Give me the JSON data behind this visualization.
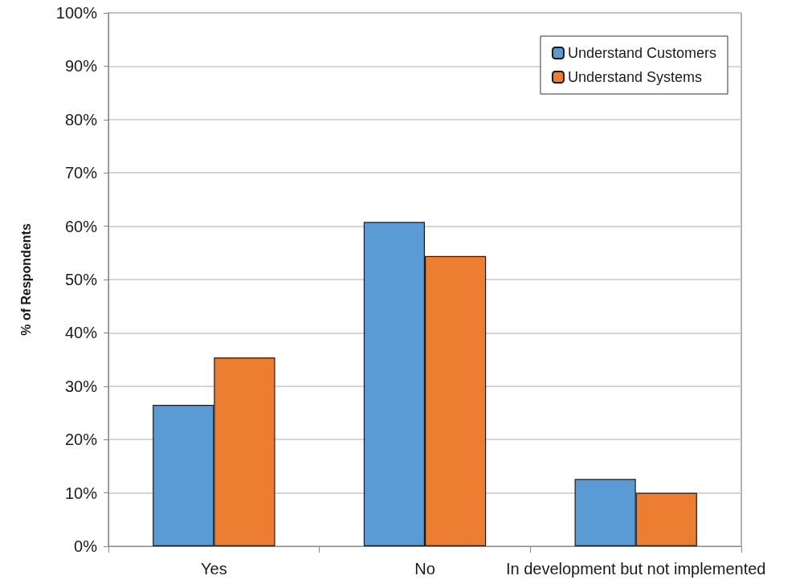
{
  "chart_data": {
    "type": "bar",
    "ylabel": "% of Respondents",
    "categories": [
      "Yes",
      "No",
      "In development but not implemented"
    ],
    "series": [
      {
        "name": "Understand Customers",
        "color": "#5b9bd5",
        "values": [
          26.5,
          60.8,
          12.6
        ]
      },
      {
        "name": "Understand Systems",
        "color": "#ed7d31",
        "values": [
          35.4,
          54.4,
          10.0
        ]
      }
    ],
    "ylim": [
      0,
      100
    ],
    "yticks": [
      {
        "value": 0,
        "label": "0%"
      },
      {
        "value": 10,
        "label": "10%"
      },
      {
        "value": 20,
        "label": "20%"
      },
      {
        "value": 30,
        "label": "30%"
      },
      {
        "value": 40,
        "label": "40%"
      },
      {
        "value": 50,
        "label": "50%"
      },
      {
        "value": 60,
        "label": "60%"
      },
      {
        "value": 70,
        "label": "70%"
      },
      {
        "value": 80,
        "label": "80%"
      },
      {
        "value": 90,
        "label": "90%"
      },
      {
        "value": 100,
        "label": "100%"
      }
    ],
    "grid": "y",
    "legend": "top right"
  }
}
